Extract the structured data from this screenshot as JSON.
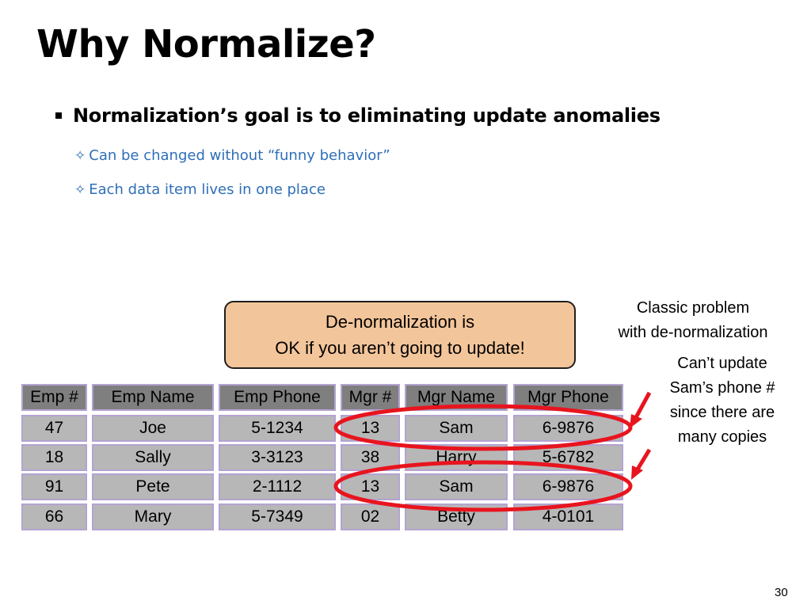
{
  "slide": {
    "title": "Why Normalize?",
    "bullet": "Normalization’s goal is to eliminating update anomalies",
    "sub_bullets": [
      "Can be changed without “funny behavior”",
      "Each data item lives in one place"
    ],
    "callout": {
      "line1": "De-normalization is",
      "line2": "OK if you aren’t going to update!"
    },
    "note_classic": [
      "Classic problem",
      "with de-normalization"
    ],
    "note_update": [
      "Can’t update",
      "Sam’s phone #",
      "since there are",
      "many copies"
    ],
    "page_number": "30"
  },
  "emp_table": {
    "headers": [
      "Emp #",
      "Emp Name",
      "Emp Phone",
      "Mgr #",
      "Mgr Name",
      "Mgr Phone"
    ],
    "rows": [
      [
        "47",
        "Joe",
        "5-1234",
        "13",
        "Sam",
        "6-9876"
      ],
      [
        "18",
        "Sally",
        "3-3123",
        "38",
        "Harry",
        "5-6782"
      ],
      [
        "91",
        "Pete",
        "2-1112",
        "13",
        "Sam",
        "6-9876"
      ],
      [
        "66",
        "Mary",
        "5-7349",
        "02",
        "Betty",
        "4-0101"
      ]
    ],
    "highlighted_rows": [
      0,
      2
    ]
  },
  "colors": {
    "cell_fill": "#b7b7b7",
    "header_fill": "#7f7f7f",
    "cell_border": "#b3a3d1",
    "callout_fill": "#f3c59a",
    "sub_bullet_text": "#2e6fb7",
    "highlight": "#e8141e"
  },
  "icons": [
    "square-bullet-icon",
    "four-point-star-icon",
    "red-arrow-icon"
  ]
}
